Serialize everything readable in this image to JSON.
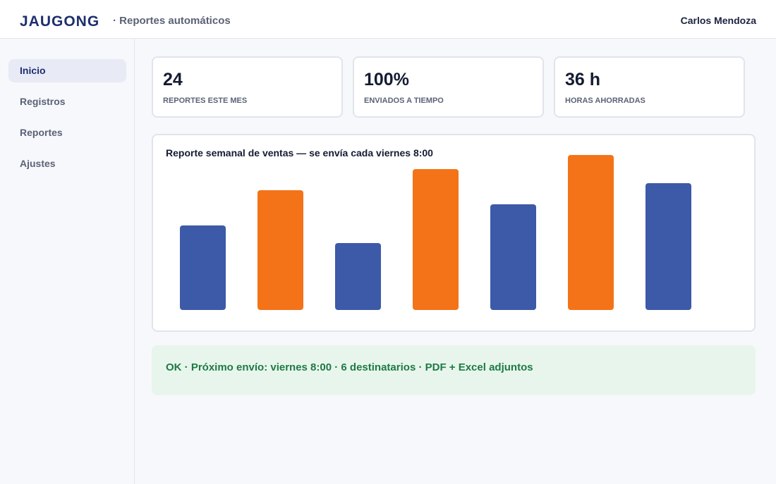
{
  "header": {
    "brand": "JAUGONG",
    "subtitle": "· Reportes automáticos",
    "user": "Carlos Mendoza"
  },
  "sidebar": {
    "items": [
      {
        "label": "Inicio",
        "active": true
      },
      {
        "label": "Registros",
        "active": false
      },
      {
        "label": "Reportes",
        "active": false
      },
      {
        "label": "Ajustes",
        "active": false
      }
    ]
  },
  "kpis": [
    {
      "value": "24",
      "label": "REPORTES ESTE MES"
    },
    {
      "value": "100%",
      "label": "ENVIADOS A TIEMPO"
    },
    {
      "value": "36 h",
      "label": "HORAS AHORRADAS"
    }
  ],
  "chart_data": {
    "type": "bar",
    "title": "Reporte semanal de ventas — se envía cada viernes 8:00",
    "xlabel": "",
    "ylabel": "",
    "categories": [
      "",
      "",
      "",
      "",
      "",
      "",
      ""
    ],
    "values": [
      120,
      170,
      95,
      200,
      150,
      220,
      180
    ],
    "ylim": [
      0,
      220
    ],
    "grid": false,
    "colors": [
      "#3d5aa8",
      "#f47318",
      "#3d5aa8",
      "#f47318",
      "#3d5aa8",
      "#f47318",
      "#3d5aa8"
    ]
  },
  "status": {
    "text": "OK · Próximo envío: viernes 8:00 · 6 destinatarios · PDF + Excel adjuntos"
  },
  "colors": {
    "brand": "#1e2f6e",
    "accent_blue": "#3d5aa8",
    "accent_orange": "#f47318",
    "success_bg": "#e8f5ec",
    "success_text": "#1e7a45"
  }
}
